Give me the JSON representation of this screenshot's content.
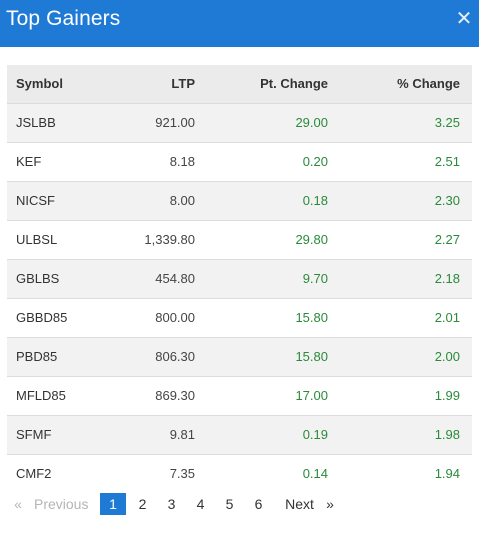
{
  "header": {
    "title": "Top Gainers",
    "close_icon": "close-icon"
  },
  "table": {
    "columns": [
      "Symbol",
      "LTP",
      "Pt. Change",
      "% Change"
    ],
    "rows": [
      [
        "JSLBB",
        "921.00",
        "29.00",
        "3.25"
      ],
      [
        "KEF",
        "8.18",
        "0.20",
        "2.51"
      ],
      [
        "NICSF",
        "8.00",
        "0.18",
        "2.30"
      ],
      [
        "ULBSL",
        "1,339.80",
        "29.80",
        "2.27"
      ],
      [
        "GBLBS",
        "454.80",
        "9.70",
        "2.18"
      ],
      [
        "GBBD85",
        "800.00",
        "15.80",
        "2.01"
      ],
      [
        "PBD85",
        "806.30",
        "15.80",
        "2.00"
      ],
      [
        "MFLD85",
        "869.30",
        "17.00",
        "1.99"
      ],
      [
        "SFMF",
        "9.81",
        "0.19",
        "1.98"
      ],
      [
        "CMF2",
        "7.35",
        "0.14",
        "1.94"
      ]
    ]
  },
  "pagination": {
    "prev_arrow": "«",
    "prev_label": "Previous",
    "pages": [
      "1",
      "2",
      "3",
      "4",
      "5",
      "6"
    ],
    "active_page": "1",
    "next_label": "Next",
    "next_arrow": "»"
  },
  "colors": {
    "header_bg": "#1f7ad6",
    "positive": "#2a8a3a",
    "active_page_bg": "#1f7ad6"
  }
}
